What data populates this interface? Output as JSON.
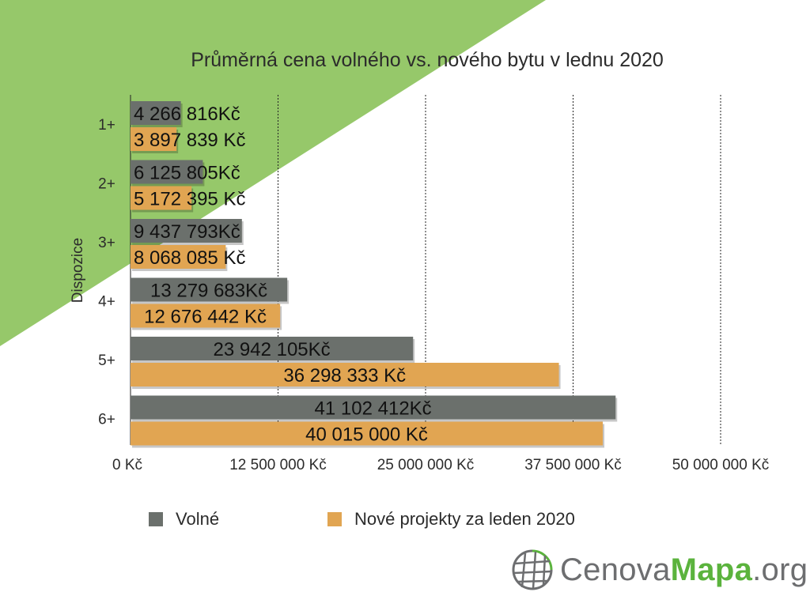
{
  "colors": {
    "background_triangle": "#96c86a",
    "series_volne": "#6b706c",
    "series_nove": "#e1a552",
    "logo_grey": "#6d6e70",
    "logo_green": "#5bb33d"
  },
  "chart_data": {
    "type": "bar",
    "orientation": "horizontal",
    "title": "Průměrná cena volného vs. nového bytu v lednu 2020",
    "ylabel": "Dispozice",
    "xlabel": "",
    "categories": [
      "1+",
      "2+",
      "3+",
      "4+",
      "5+",
      "6+"
    ],
    "xlim": [
      0,
      50000000
    ],
    "x_ticks": [
      0,
      12500000,
      25000000,
      37500000,
      50000000
    ],
    "x_tick_labels": [
      "0 Kč",
      "12 500 000 Kč",
      "25 000 000 Kč",
      "37 500 000 Kč",
      "50 000 000 Kč"
    ],
    "grid": "vertical dashed",
    "legend_position": "bottom",
    "series": [
      {
        "name": "Volné",
        "values": [
          4266816,
          6125805,
          9437793,
          13279683,
          23942105,
          41102412
        ],
        "labels": [
          "4 266 816Kč",
          "6 125 805Kč",
          "9 437 793Kč",
          "13 279 683Kč",
          "23 942 105Kč",
          "41 102 412Kč"
        ]
      },
      {
        "name": "Nové projekty za leden 2020",
        "values": [
          3897839,
          5172395,
          8068085,
          12676442,
          36298333,
          40015000
        ],
        "labels": [
          "3 897 839 Kč",
          "5 172 395 Kč",
          "8 068 085 Kč",
          "12 676 442 Kč",
          "36 298 333 Kč",
          "40 015 000 Kč"
        ]
      }
    ]
  },
  "legend": {
    "volne": "Volné",
    "nove": "Nové projekty za leden 2020"
  },
  "logo": {
    "part1": "Cenova",
    "part2": "Mapa",
    "part3": ".org",
    "icon": "globe-grid-icon"
  }
}
